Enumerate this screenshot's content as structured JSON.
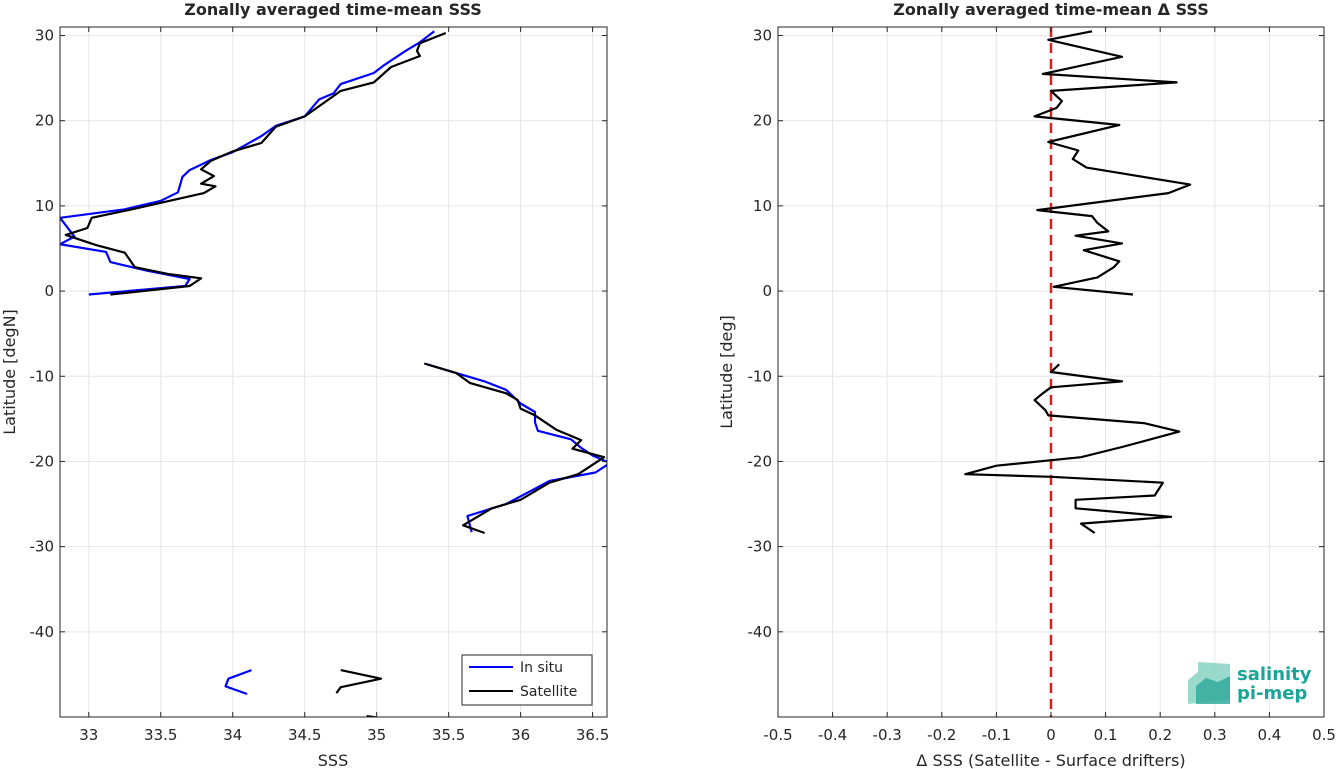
{
  "chart_data": [
    {
      "type": "line",
      "title": "Zonally averaged time-mean SSS",
      "xlabel": "SSS",
      "ylabel": "Latitude [degN]",
      "xlim": [
        32.8,
        36.6
      ],
      "ylim": [
        -50,
        31
      ],
      "xticks": [
        "33",
        "33.5",
        "34",
        "34.5",
        "35",
        "35.5",
        "36",
        "36.5"
      ],
      "yticks": [
        "-40",
        "-30",
        "-20",
        "-10",
        "0",
        "10",
        "20",
        "30"
      ],
      "grid": true,
      "legend": {
        "position": "bottom-right",
        "entries": [
          "In situ",
          "Satellite"
        ]
      },
      "series": [
        {
          "name": "In situ",
          "color": "#0000ff",
          "segments": [
            [
              [
                35.4,
                30.5
              ],
              [
                35.3,
                29.2
              ],
              [
                35.2,
                28.2
              ],
              [
                35.05,
                26.5
              ],
              [
                34.98,
                25.6
              ],
              [
                34.75,
                24.3
              ],
              [
                34.7,
                23.2
              ],
              [
                34.6,
                22.5
              ],
              [
                34.5,
                20.5
              ],
              [
                34.3,
                19.4
              ],
              [
                34.2,
                18.2
              ],
              [
                34.0,
                16.3
              ],
              [
                33.85,
                15.4
              ],
              [
                33.7,
                14.2
              ],
              [
                33.65,
                13.4
              ],
              [
                33.62,
                11.6
              ],
              [
                33.5,
                10.6
              ],
              [
                33.25,
                9.6
              ],
              [
                32.8,
                8.6
              ],
              [
                32.9,
                6.4
              ],
              [
                32.8,
                5.5
              ],
              [
                33.12,
                4.6
              ],
              [
                33.15,
                3.4
              ],
              [
                33.4,
                2.4
              ],
              [
                33.7,
                1.4
              ],
              [
                33.67,
                0.6
              ],
              [
                33.0,
                -0.4
              ]
            ],
            [
              [
                35.35,
                -8.6
              ],
              [
                35.55,
                -9.6
              ],
              [
                35.75,
                -10.6
              ],
              [
                35.9,
                -11.6
              ],
              [
                36.0,
                -13.2
              ],
              [
                36.1,
                -14.2
              ],
              [
                36.1,
                -15.4
              ],
              [
                36.12,
                -16.4
              ],
              [
                36.35,
                -17.4
              ],
              [
                36.42,
                -18.4
              ],
              [
                36.5,
                -19.3
              ],
              [
                36.62,
                -20.2
              ],
              [
                36.52,
                -21.3
              ],
              [
                36.2,
                -22.3
              ],
              [
                36.1,
                -23.2
              ],
              [
                35.9,
                -25.0
              ],
              [
                35.63,
                -26.4
              ],
              [
                35.66,
                -28.3
              ]
            ],
            [
              [
                34.13,
                -44.5
              ],
              [
                33.97,
                -45.5
              ],
              [
                33.95,
                -46.4
              ],
              [
                34.1,
                -47.3
              ]
            ]
          ]
        },
        {
          "name": "Satellite",
          "color": "#000000",
          "segments": [
            [
              [
                35.48,
                30.3
              ],
              [
                35.3,
                29.1
              ],
              [
                35.28,
                28.2
              ],
              [
                35.3,
                27.6
              ],
              [
                35.1,
                26.3
              ],
              [
                34.98,
                24.5
              ],
              [
                34.75,
                23.5
              ],
              [
                34.65,
                22.3
              ],
              [
                34.5,
                20.5
              ],
              [
                34.3,
                19.3
              ],
              [
                34.2,
                17.4
              ],
              [
                34.0,
                16.4
              ],
              [
                33.85,
                15.3
              ],
              [
                33.78,
                14.3
              ],
              [
                33.87,
                13.5
              ],
              [
                33.78,
                12.6
              ],
              [
                33.88,
                12.3
              ],
              [
                33.8,
                11.5
              ],
              [
                33.3,
                9.6
              ],
              [
                33.02,
                8.6
              ],
              [
                32.99,
                7.4
              ],
              [
                32.84,
                6.6
              ],
              [
                33.05,
                5.4
              ],
              [
                33.25,
                4.5
              ],
              [
                33.32,
                2.8
              ],
              [
                33.55,
                2.0
              ],
              [
                33.78,
                1.5
              ],
              [
                33.7,
                0.6
              ],
              [
                33.15,
                -0.4
              ]
            ],
            [
              [
                35.33,
                -8.5
              ],
              [
                35.55,
                -9.6
              ],
              [
                35.65,
                -10.8
              ],
              [
                35.9,
                -12.0
              ],
              [
                35.98,
                -12.8
              ],
              [
                36.0,
                -13.8
              ],
              [
                36.1,
                -14.6
              ],
              [
                36.25,
                -16.3
              ],
              [
                36.42,
                -17.5
              ],
              [
                36.36,
                -18.5
              ],
              [
                36.58,
                -19.5
              ],
              [
                36.4,
                -21.5
              ],
              [
                36.2,
                -22.5
              ],
              [
                36.0,
                -24.5
              ],
              [
                35.8,
                -25.5
              ],
              [
                35.6,
                -27.5
              ],
              [
                35.75,
                -28.4
              ]
            ],
            [
              [
                34.75,
                -44.5
              ],
              [
                35.03,
                -45.5
              ],
              [
                34.75,
                -46.5
              ],
              [
                34.72,
                -47.2
              ]
            ],
            [
              [
                34.93,
                -49.9
              ],
              [
                35.12,
                -50.3
              ]
            ]
          ]
        }
      ]
    },
    {
      "type": "line",
      "title": "Zonally averaged time-mean Δ SSS",
      "xlabel": "Δ SSS (Satellite - Surface drifters)",
      "ylabel": "Latitude [deg]",
      "xlim": [
        -0.5,
        0.5
      ],
      "ylim": [
        -50,
        31
      ],
      "xticks": [
        "-0.5",
        "-0.4",
        "-0.3",
        "-0.2",
        "-0.1",
        "0",
        "0.1",
        "0.2",
        "0.3",
        "0.4",
        "0.5"
      ],
      "yticks": [
        "-40",
        "-30",
        "-20",
        "-10",
        "0",
        "10",
        "20",
        "30"
      ],
      "grid": true,
      "reference_line": {
        "x": 0,
        "color": "#e0201c",
        "style": "dashed"
      },
      "series": [
        {
          "name": "",
          "color": "#000000",
          "segments": [
            [
              [
                0.075,
                30.5
              ],
              [
                -0.005,
                29.5
              ],
              [
                0.13,
                27.5
              ],
              [
                -0.015,
                25.5
              ],
              [
                0.23,
                24.5
              ],
              [
                0.0,
                23.5
              ],
              [
                0.02,
                22.3
              ],
              [
                0.01,
                21.5
              ],
              [
                -0.03,
                20.5
              ],
              [
                0.125,
                19.5
              ],
              [
                -0.005,
                17.5
              ],
              [
                0.05,
                16.5
              ],
              [
                0.04,
                15.5
              ],
              [
                0.065,
                14.5
              ],
              [
                0.15,
                13.6
              ],
              [
                0.255,
                12.5
              ],
              [
                0.215,
                11.5
              ],
              [
                -0.025,
                9.5
              ],
              [
                0.075,
                8.8
              ],
              [
                0.085,
                8.0
              ],
              [
                0.105,
                7.0
              ],
              [
                0.045,
                6.5
              ],
              [
                0.13,
                5.6
              ],
              [
                0.06,
                4.8
              ],
              [
                0.125,
                3.5
              ],
              [
                0.115,
                2.8
              ],
              [
                0.085,
                1.6
              ],
              [
                0.005,
                0.5
              ],
              [
                0.15,
                -0.4
              ]
            ],
            [
              [
                0.015,
                -8.6
              ],
              [
                0.0,
                -9.5
              ],
              [
                0.13,
                -10.6
              ],
              [
                0.0,
                -11.3
              ],
              [
                -0.015,
                -12.0
              ],
              [
                -0.03,
                -12.8
              ],
              [
                -0.01,
                -14.0
              ],
              [
                -0.005,
                -14.6
              ],
              [
                0.17,
                -15.5
              ],
              [
                0.235,
                -16.5
              ],
              [
                0.13,
                -18.3
              ],
              [
                0.055,
                -19.5
              ],
              [
                -0.1,
                -20.5
              ],
              [
                -0.157,
                -21.5
              ],
              [
                0.0,
                -21.8
              ],
              [
                0.205,
                -22.5
              ],
              [
                0.19,
                -24.0
              ],
              [
                0.045,
                -24.5
              ],
              [
                0.045,
                -25.5
              ],
              [
                0.22,
                -26.5
              ],
              [
                0.055,
                -27.3
              ],
              [
                0.08,
                -28.4
              ]
            ]
          ]
        }
      ]
    }
  ],
  "logo": {
    "line1": "salinity",
    "line2": "pi-mep",
    "color": "#1aa598"
  }
}
